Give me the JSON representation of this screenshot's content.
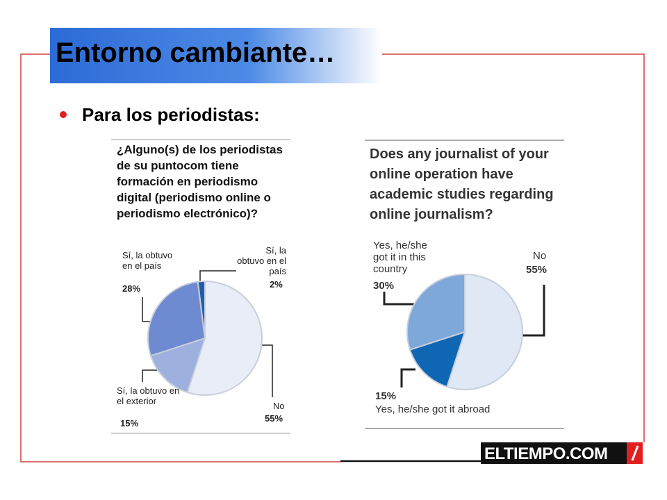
{
  "slide_title": "Entorno cambiante…",
  "bullet": "Para los periodistas:",
  "logo": "ELTIEMPO.COM",
  "chart_data": [
    {
      "type": "pie",
      "title": "¿Alguno(s) de los periodistas de su puntocom tiene formación en periodismo digital (periodismo online o periodismo electrónico)?",
      "categories": [
        "No",
        "Sí, la obtuvo en el exterior",
        "Sí, la obtuvo en el país",
        "Sí, la obtuvo en el país"
      ],
      "values": [
        55,
        15,
        28,
        2
      ],
      "value_labels": [
        "55%",
        "15%",
        "28%",
        "2%"
      ],
      "colors": [
        "#e9edf7",
        "#9db0de",
        "#6e8ad0",
        "#1f5fa9"
      ]
    },
    {
      "type": "pie",
      "title": "Does any journalist of your online operation have academic studies regarding online journalism?",
      "categories": [
        "No",
        "Yes, he/she got it abroad",
        "Yes, he/she got it in this country"
      ],
      "values": [
        55,
        15,
        30
      ],
      "value_labels": [
        "55%",
        "15%",
        "30%"
      ],
      "colors": [
        "#dfe8f4",
        "#0f67b4",
        "#7ea8d9"
      ]
    }
  ]
}
